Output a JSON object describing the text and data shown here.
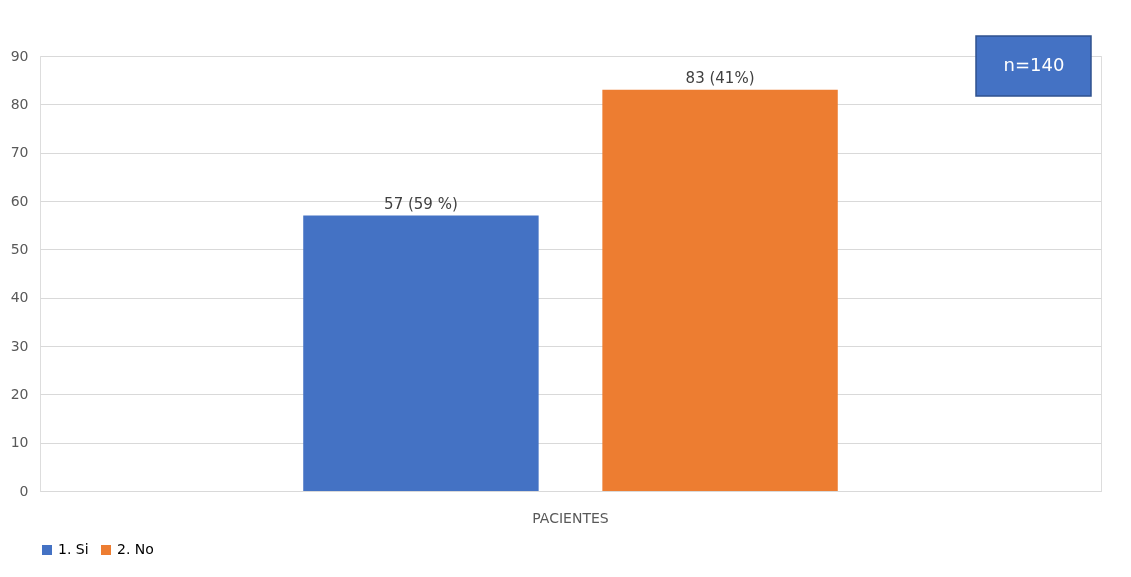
{
  "chart_data": {
    "type": "bar",
    "categories": [
      "PACIENTES"
    ],
    "series": [
      {
        "name": "1. Si",
        "color": "#4472c4",
        "values": [
          57
        ],
        "value_labels": [
          "57 (59 %)"
        ]
      },
      {
        "name": "2. No",
        "color": "#ed7d31",
        "values": [
          83
        ],
        "value_labels": [
          "83 (41%)"
        ]
      }
    ],
    "ylim": [
      0,
      90
    ],
    "yticks": [
      0,
      10,
      20,
      30,
      40,
      50,
      60,
      70,
      80,
      90
    ],
    "grid": "y",
    "legend": "bottom",
    "annotations": [
      "n=140"
    ]
  }
}
